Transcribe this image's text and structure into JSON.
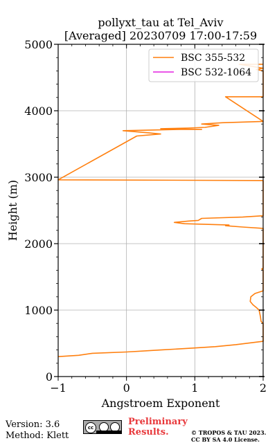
{
  "chart_data": {
    "type": "line",
    "title": "pollyxt_tau at Tel_Aviv",
    "subtitle": "[Averaged] 20230709 17:00-17:59",
    "xlabel": "Angstroem Exponent",
    "ylabel": "Height (m)",
    "xlim": [
      -1,
      2
    ],
    "ylim": [
      0,
      5000
    ],
    "xticks": [
      -1,
      0,
      1,
      2
    ],
    "yticks": [
      0,
      1000,
      2000,
      3000,
      4000,
      5000
    ],
    "grid": true,
    "legend_position": "top-right",
    "series": [
      {
        "name": "BSC 355-532",
        "color": "#ff7f0e",
        "points": [
          [
            -1.0,
            300
          ],
          [
            -0.7,
            320
          ],
          [
            -0.5,
            350
          ],
          [
            0.0,
            370
          ],
          [
            0.5,
            400
          ],
          [
            1.0,
            430
          ],
          [
            1.3,
            450
          ],
          [
            1.6,
            480
          ],
          [
            2.0,
            530
          ],
          [
            2.0,
            800
          ],
          [
            1.97,
            830
          ],
          [
            1.96,
            900
          ],
          [
            1.94,
            1000
          ],
          [
            1.9,
            1040
          ],
          [
            1.85,
            1080
          ],
          [
            1.81,
            1130
          ],
          [
            1.82,
            1200
          ],
          [
            1.88,
            1250
          ],
          [
            1.97,
            1280
          ],
          [
            2.0,
            1290
          ],
          [
            2.0,
            1600
          ],
          [
            1.98,
            1620
          ],
          [
            2.0,
            1630
          ],
          [
            2.0,
            2230
          ],
          [
            1.7,
            2250
          ],
          [
            1.45,
            2270
          ],
          [
            1.5,
            2280
          ],
          [
            1.2,
            2290
          ],
          [
            0.85,
            2300
          ],
          [
            0.7,
            2320
          ],
          [
            0.9,
            2340
          ],
          [
            1.05,
            2350
          ],
          [
            1.1,
            2380
          ],
          [
            1.7,
            2400
          ],
          [
            2.0,
            2420
          ],
          [
            2.0,
            2950
          ],
          [
            -1.0,
            2960
          ],
          [
            0.15,
            3620
          ],
          [
            0.5,
            3650
          ],
          [
            0.3,
            3670
          ],
          [
            -0.05,
            3700
          ],
          [
            0.4,
            3710
          ],
          [
            0.8,
            3720
          ],
          [
            1.1,
            3720
          ],
          [
            0.5,
            3730
          ],
          [
            0.9,
            3740
          ],
          [
            1.15,
            3750
          ],
          [
            1.35,
            3780
          ],
          [
            1.1,
            3800
          ],
          [
            1.4,
            3820
          ],
          [
            2.0,
            3840
          ],
          [
            1.45,
            4210
          ],
          [
            2.0,
            4210
          ],
          [
            2.0,
            4600
          ],
          [
            1.9,
            4620
          ],
          [
            2.0,
            4640
          ],
          [
            1.65,
            4700
          ],
          [
            2.0,
            4700
          ]
        ]
      },
      {
        "name": "BSC 532-1064",
        "color": "#e41ee0",
        "points": []
      }
    ]
  },
  "footer": {
    "version": "Version: 3.6",
    "method": "Method: Klett",
    "preliminary_line1": "Preliminary",
    "preliminary_line2": "Results.",
    "copyright_line1": "© TROPOS & TAU 2023.",
    "copyright_line2": "CC BY SA 4.0 License.",
    "license_icon": "cc-by-sa-badge"
  }
}
